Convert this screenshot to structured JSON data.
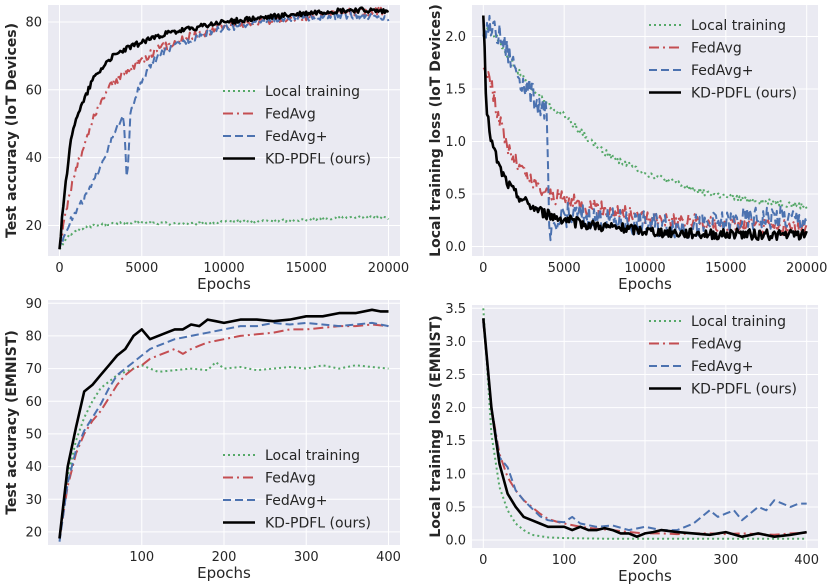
{
  "colors": {
    "background": "#eaeaf2",
    "grid": "#ffffff",
    "local": "#55a868",
    "fedavg": "#c44e52",
    "fedavgp": "#4c72b0",
    "kd": "#000000"
  },
  "chart_data": [
    {
      "type": "line",
      "xlabel": "Epochs",
      "ylabel": "Test accuracy (IoT Devices)",
      "xlim": [
        -700,
        20700
      ],
      "ylim": [
        11,
        85
      ],
      "xticks": [
        0,
        5000,
        10000,
        15000,
        20000
      ],
      "yticks": [
        20,
        40,
        60,
        80
      ],
      "xticklabels": [
        "0",
        "5000",
        "10000",
        "15000",
        "20000"
      ],
      "yticklabels": [
        "20",
        "40",
        "60",
        "80"
      ],
      "legend_position": "center-right",
      "noise": [
        0.4,
        1.2,
        1.0,
        0.8
      ],
      "series": [
        {
          "name": "Local training",
          "key": "local",
          "dash": "2,3",
          "width": 2,
          "x": [
            0,
            500,
            1500,
            3000,
            5000,
            8000,
            10000,
            14000,
            18000,
            20000
          ],
          "values": [
            13,
            17,
            19.5,
            20.5,
            20.8,
            20.5,
            21,
            21.5,
            22.5,
            22.2
          ]
        },
        {
          "name": "FedAvg",
          "key": "fedavg",
          "dash": "10,4,2,4",
          "width": 2,
          "x": [
            0,
            500,
            1000,
            1500,
            2000,
            2500,
            3000,
            4000,
            5000,
            6000,
            7000,
            8000,
            9000,
            10000,
            12000,
            14000,
            16000,
            18000,
            20000
          ],
          "values": [
            13,
            27,
            37,
            43,
            51,
            56,
            61,
            65,
            69,
            72,
            74,
            76,
            77,
            79,
            80,
            81,
            82,
            83,
            83
          ]
        },
        {
          "name": "FedAvg+",
          "key": "fedavgp",
          "dash": "8,4",
          "width": 2,
          "x": [
            0,
            500,
            1000,
            1500,
            2000,
            2500,
            3000,
            3500,
            3900,
            4100,
            4300,
            4600,
            5000,
            5500,
            6000,
            7000,
            8000,
            9000,
            10000,
            12000,
            14000,
            16000,
            18000,
            20000
          ],
          "values": [
            13,
            20,
            24,
            28,
            32,
            38,
            43,
            49,
            52,
            32,
            52,
            58,
            62,
            67,
            70,
            73,
            75,
            77,
            78,
            80,
            81,
            81.5,
            82,
            81
          ]
        },
        {
          "name": "KD-PDFL (ours)",
          "key": "kd",
          "dash": "",
          "width": 2.6,
          "x": [
            0,
            300,
            700,
            1000,
            1500,
            2000,
            3000,
            4000,
            5000,
            6000,
            7000,
            8000,
            10000,
            12000,
            14000,
            16000,
            18000,
            20000
          ],
          "values": [
            13,
            30,
            45,
            52,
            57,
            63,
            69,
            72,
            74,
            76,
            77,
            78,
            80,
            81,
            82,
            83,
            83.5,
            83
          ]
        }
      ]
    },
    {
      "type": "line",
      "xlabel": "Epochs",
      "ylabel": "Local training loss (IoT Devices)",
      "xlim": [
        -700,
        20700
      ],
      "ylim": [
        -0.09,
        2.3
      ],
      "xticks": [
        0,
        5000,
        10000,
        15000,
        20000
      ],
      "yticks": [
        0.0,
        0.5,
        1.0,
        1.5,
        2.0
      ],
      "xticklabels": [
        "0",
        "5000",
        "10000",
        "15000",
        "20000"
      ],
      "yticklabels": [
        "0.0",
        "0.5",
        "1.0",
        "1.5",
        "2.0"
      ],
      "legend_position": "top-right",
      "noise": [
        0.03,
        0.08,
        0.12,
        0.05
      ],
      "series": [
        {
          "name": "Local training",
          "key": "local",
          "dash": "2,3",
          "width": 2,
          "x": [
            0,
            500,
            1000,
            2000,
            3000,
            4000,
            5000,
            6000,
            7000,
            8000,
            9000,
            10000,
            12000,
            14000,
            16000,
            18000,
            20000
          ],
          "values": [
            2.1,
            2.05,
            1.95,
            1.7,
            1.5,
            1.35,
            1.25,
            1.1,
            0.95,
            0.85,
            0.78,
            0.7,
            0.6,
            0.5,
            0.45,
            0.42,
            0.38
          ]
        },
        {
          "name": "FedAvg",
          "key": "fedavg",
          "dash": "10,4,2,4",
          "width": 2,
          "x": [
            0,
            300,
            700,
            1000,
            1500,
            2000,
            3000,
            4000,
            5000,
            6000,
            8000,
            10000,
            12000,
            14000,
            16000,
            18000,
            20000
          ],
          "values": [
            1.7,
            1.65,
            1.4,
            1.2,
            0.95,
            0.8,
            0.6,
            0.5,
            0.45,
            0.4,
            0.33,
            0.28,
            0.25,
            0.22,
            0.2,
            0.18,
            0.17
          ]
        },
        {
          "name": "FedAvg+",
          "key": "fedavgp",
          "dash": "8,4",
          "width": 2,
          "x": [
            0,
            300,
            700,
            1000,
            1500,
            2000,
            2500,
            3000,
            3500,
            3900,
            4100,
            5000,
            6000,
            8000,
            10000,
            12000,
            14000,
            16000,
            18000,
            20000
          ],
          "values": [
            2.0,
            2.1,
            2.05,
            2.0,
            1.85,
            1.7,
            1.55,
            1.45,
            1.35,
            1.3,
            0.05,
            0.3,
            0.3,
            0.25,
            0.22,
            0.2,
            0.2,
            0.25,
            0.28,
            0.25
          ]
        },
        {
          "name": "KD-PDFL (ours)",
          "key": "kd",
          "dash": "",
          "width": 2.6,
          "x": [
            0,
            200,
            500,
            1000,
            1500,
            2000,
            3000,
            4000,
            5000,
            6000,
            8000,
            10000,
            12000,
            14000,
            16000,
            18000,
            20000
          ],
          "values": [
            2.2,
            1.3,
            1.0,
            0.75,
            0.6,
            0.5,
            0.38,
            0.3,
            0.26,
            0.22,
            0.18,
            0.15,
            0.13,
            0.12,
            0.12,
            0.11,
            0.11
          ]
        }
      ]
    },
    {
      "type": "line",
      "xlabel": "Epochs",
      "ylabel": "Test accuracy (EMNIST)",
      "xlim": [
        -14,
        414
      ],
      "ylim": [
        16,
        91
      ],
      "xticks": [
        100,
        200,
        300,
        400
      ],
      "yticks": [
        20,
        30,
        40,
        50,
        60,
        70,
        80,
        90
      ],
      "xticklabels": [
        "100",
        "200",
        "300",
        "400"
      ],
      "yticklabels": [
        "20",
        "30",
        "40",
        "50",
        "60",
        "70",
        "80",
        "90"
      ],
      "legend_position": "bottom-right",
      "noise": [
        0,
        0,
        0,
        0
      ],
      "series": [
        {
          "name": "Local training",
          "key": "local",
          "dash": "2,3",
          "width": 2,
          "x": [
            0,
            10,
            20,
            30,
            40,
            50,
            60,
            70,
            80,
            90,
            100,
            110,
            120,
            140,
            160,
            180,
            190,
            200,
            220,
            240,
            260,
            280,
            300,
            320,
            340,
            360,
            380,
            400
          ],
          "values": [
            18,
            37,
            48,
            55,
            60,
            64,
            66,
            68,
            69,
            70,
            71,
            70,
            69,
            69.5,
            70,
            69.5,
            72,
            70,
            70.5,
            69.5,
            70,
            70.5,
            70,
            71,
            70,
            71,
            70.5,
            70
          ]
        },
        {
          "name": "FedAvg",
          "key": "fedavg",
          "dash": "10,4,2,4",
          "width": 2,
          "x": [
            0,
            10,
            20,
            30,
            40,
            50,
            60,
            70,
            80,
            90,
            100,
            110,
            120,
            130,
            140,
            150,
            160,
            170,
            180,
            200,
            220,
            240,
            260,
            280,
            300,
            320,
            340,
            360,
            380,
            400
          ],
          "values": [
            18,
            34,
            44,
            50,
            54,
            57,
            61,
            65,
            68,
            70,
            71,
            73,
            74,
            75,
            76,
            74.5,
            76,
            77,
            78,
            79,
            80,
            80.5,
            81,
            82,
            82,
            82.5,
            83,
            83,
            83.5,
            83
          ]
        },
        {
          "name": "FedAvg+",
          "key": "fedavgp",
          "dash": "8,4",
          "width": 2,
          "x": [
            0,
            10,
            20,
            30,
            40,
            50,
            60,
            70,
            80,
            90,
            100,
            110,
            120,
            140,
            160,
            180,
            200,
            220,
            240,
            260,
            280,
            300,
            320,
            340,
            360,
            380,
            400
          ],
          "values": [
            17,
            35,
            45,
            51,
            55,
            59,
            64,
            68,
            70,
            72,
            74,
            76,
            77,
            79,
            80,
            81,
            82,
            83,
            83,
            84,
            83.5,
            84,
            83.5,
            83,
            83.5,
            84,
            83
          ]
        },
        {
          "name": "KD-PDFL (ours)",
          "key": "kd",
          "dash": "",
          "width": 2.6,
          "x": [
            0,
            10,
            20,
            30,
            40,
            50,
            60,
            70,
            80,
            90,
            100,
            110,
            120,
            130,
            140,
            150,
            160,
            170,
            180,
            190,
            200,
            220,
            240,
            260,
            280,
            300,
            320,
            340,
            360,
            380,
            390,
            400
          ],
          "values": [
            18,
            40,
            52,
            63,
            65,
            68,
            71,
            74,
            76,
            80,
            82,
            79,
            80,
            81,
            82,
            82,
            83.5,
            83,
            85,
            84.5,
            84,
            85,
            85,
            84.5,
            85,
            86,
            86,
            87,
            87,
            88,
            87.5,
            87.5
          ]
        }
      ]
    },
    {
      "type": "line",
      "xlabel": "Epochs",
      "ylabel": "Local training loss (EMNIST)",
      "xlim": [
        -14,
        414
      ],
      "ylim": [
        -0.12,
        3.55
      ],
      "xticks": [
        0,
        100,
        200,
        300,
        400
      ],
      "yticks": [
        0.0,
        0.5,
        1.0,
        1.5,
        2.0,
        2.5,
        3.0,
        3.5
      ],
      "xticklabels": [
        "0",
        "100",
        "200",
        "300",
        "400"
      ],
      "yticklabels": [
        "0.0",
        "0.5",
        "1.0",
        "1.5",
        "2.0",
        "2.5",
        "3.0",
        "3.5"
      ],
      "legend_position": "top-right",
      "noise": [
        0,
        0,
        0,
        0
      ],
      "series": [
        {
          "name": "Local training",
          "key": "local",
          "dash": "2,3",
          "width": 2,
          "x": [
            0,
            10,
            20,
            30,
            40,
            50,
            60,
            80,
            100,
            150,
            200,
            250,
            300,
            350,
            400
          ],
          "values": [
            3.5,
            1.6,
            0.8,
            0.45,
            0.25,
            0.15,
            0.08,
            0.04,
            0.03,
            0.02,
            0.02,
            0.02,
            0.02,
            0.02,
            0.02
          ]
        },
        {
          "name": "FedAvg",
          "key": "fedavg",
          "dash": "10,4,2,4",
          "width": 2,
          "x": [
            0,
            10,
            20,
            30,
            40,
            50,
            60,
            70,
            80,
            90,
            100,
            120,
            140,
            160,
            180,
            200,
            220,
            240,
            260,
            280,
            300,
            320,
            340,
            360,
            380,
            400
          ],
          "values": [
            3.3,
            2.0,
            1.3,
            0.95,
            0.75,
            0.6,
            0.5,
            0.4,
            0.32,
            0.28,
            0.25,
            0.2,
            0.17,
            0.15,
            0.12,
            0.1,
            0.1,
            0.09,
            0.1,
            0.1,
            0.09,
            0.1,
            0.09,
            0.08,
            0.1,
            0.11
          ]
        },
        {
          "name": "FedAvg+",
          "key": "fedavgp",
          "dash": "8,4",
          "width": 2,
          "x": [
            0,
            10,
            20,
            30,
            40,
            50,
            60,
            70,
            80,
            90,
            100,
            110,
            120,
            140,
            160,
            180,
            200,
            220,
            240,
            260,
            280,
            290,
            300,
            310,
            320,
            330,
            340,
            350,
            360,
            370,
            380,
            390,
            400
          ],
          "values": [
            3.3,
            2.0,
            1.25,
            1.1,
            0.75,
            0.6,
            0.48,
            0.36,
            0.3,
            0.28,
            0.27,
            0.35,
            0.25,
            0.2,
            0.22,
            0.15,
            0.2,
            0.15,
            0.15,
            0.25,
            0.45,
            0.35,
            0.4,
            0.45,
            0.3,
            0.4,
            0.5,
            0.45,
            0.6,
            0.55,
            0.5,
            0.55,
            0.55
          ]
        },
        {
          "name": "KD-PDFL (ours)",
          "key": "kd",
          "dash": "",
          "width": 2.6,
          "x": [
            0,
            10,
            20,
            30,
            40,
            50,
            60,
            70,
            80,
            90,
            100,
            110,
            120,
            130,
            140,
            150,
            160,
            170,
            180,
            190,
            200,
            210,
            220,
            240,
            260,
            280,
            300,
            320,
            340,
            360,
            380,
            400
          ],
          "values": [
            3.35,
            2.0,
            1.15,
            0.7,
            0.5,
            0.35,
            0.3,
            0.25,
            0.2,
            0.2,
            0.2,
            0.15,
            0.2,
            0.15,
            0.15,
            0.18,
            0.15,
            0.1,
            0.1,
            0.05,
            0.1,
            0.12,
            0.15,
            0.12,
            0.1,
            0.08,
            0.12,
            0.05,
            0.1,
            0.05,
            0.08,
            0.12
          ]
        }
      ]
    }
  ]
}
